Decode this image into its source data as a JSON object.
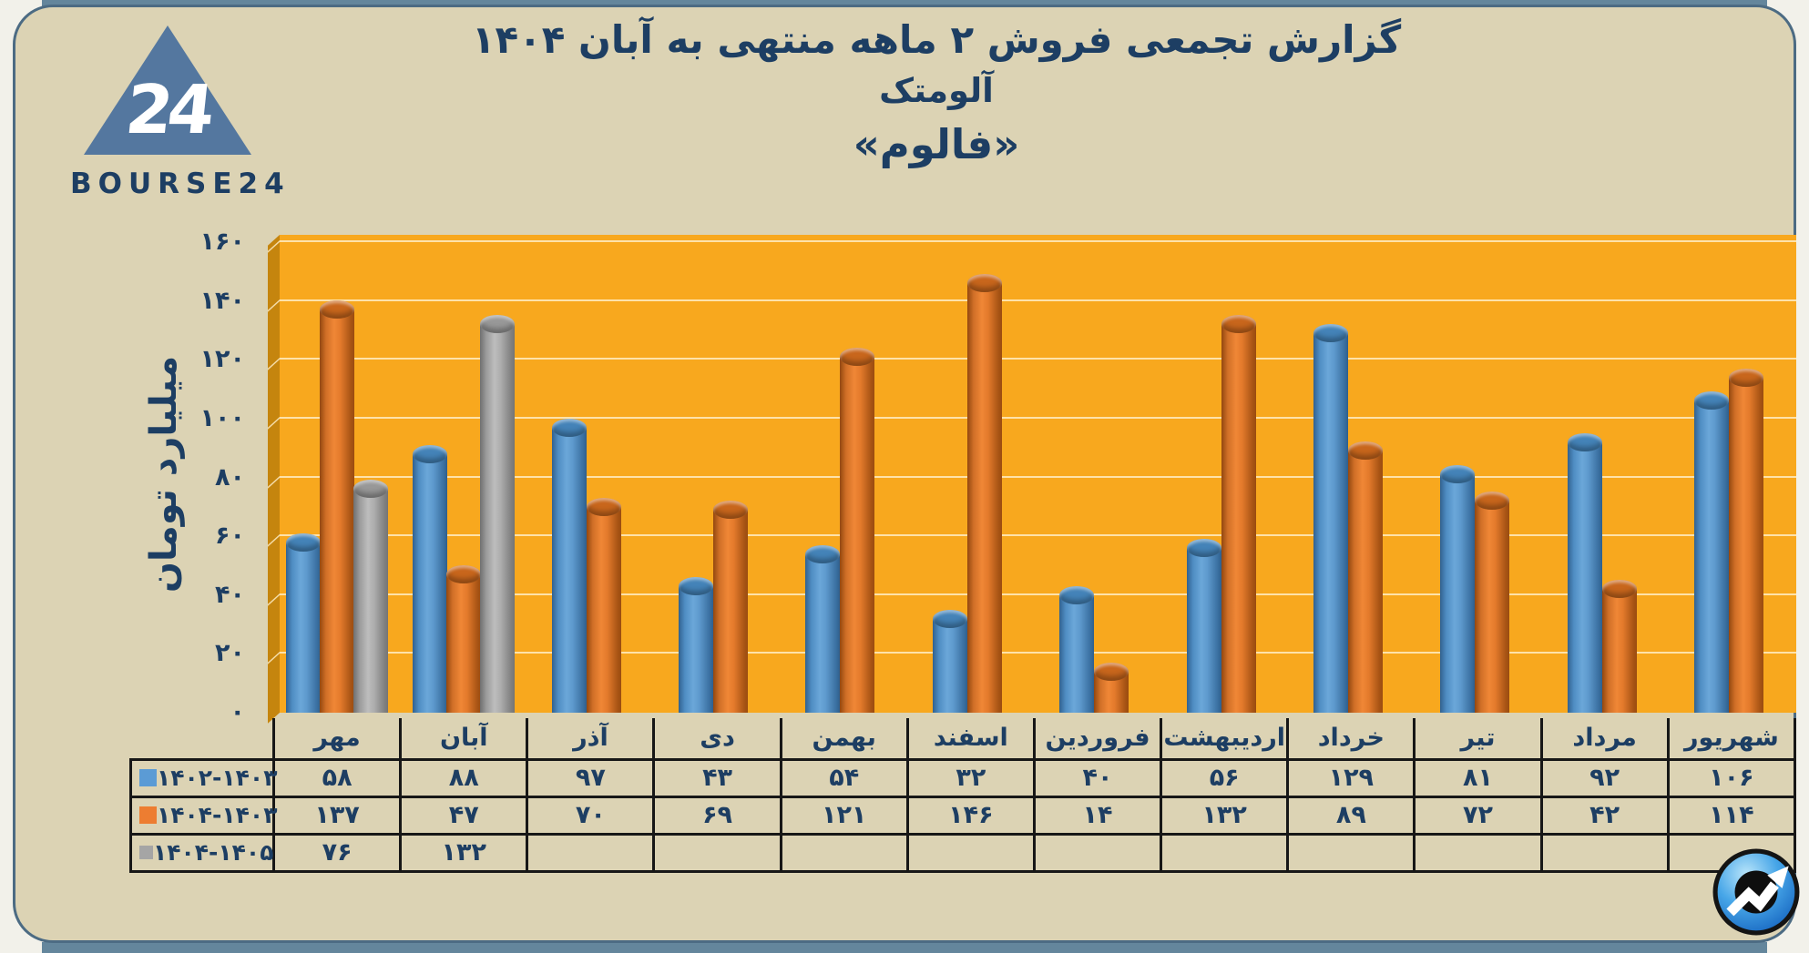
{
  "frame": {
    "strip_color": "#64869c",
    "card_bg": "#dcd3b4",
    "card_border": "#4c6b83"
  },
  "logo": {
    "icon": "bourse24-triangle-logo",
    "number": "24",
    "wordmark": "BOURSE24",
    "triangle_color": "#54779f"
  },
  "title": {
    "line1": "گزارش تجمعی فروش ۲ ماهه منتهی به آبان ۱۴۰۴",
    "line2": "آلومتک",
    "line3": "«فالوم»",
    "text_color": "#1d3e63"
  },
  "y_axis": {
    "title": "میلیارد تومان",
    "tick_min": 0,
    "tick_max": 160,
    "tick_step": 20
  },
  "digits_fa": "۰۱۲۳۴۵۶۷۸۹",
  "chart_data": {
    "type": "bar",
    "subtype": "3d-cylinder",
    "categories": [
      "مهر",
      "آبان",
      "آذر",
      "دی",
      "بهمن",
      "اسفند",
      "فروردین",
      "اردیبهشت",
      "خرداد",
      "تیر",
      "مرداد",
      "شهریور"
    ],
    "series": [
      {
        "name": "۱۴۰۲-۱۴۰۳",
        "color": "#5b9bd5",
        "values": [
          58,
          88,
          97,
          43,
          54,
          32,
          40,
          56,
          129,
          81,
          92,
          106
        ]
      },
      {
        "name": "۱۴۰۴-۱۴۰۳",
        "color": "#ed7d31",
        "values": [
          137,
          47,
          70,
          69,
          121,
          146,
          14,
          132,
          89,
          72,
          42,
          114
        ]
      },
      {
        "name": "۱۴۰۴-۱۴۰۵",
        "color": "#a5a5a5",
        "values": [
          76,
          132,
          null,
          null,
          null,
          null,
          null,
          null,
          null,
          null,
          null,
          null
        ]
      }
    ],
    "ylabel": "میلیارد تومان",
    "ylim": [
      0,
      160
    ],
    "grid": true,
    "plot_bg": "#f8a81e",
    "wall_color": "#c5850e",
    "legend_position": "table-left"
  },
  "badge": {
    "icon": "trend-up-arrow-badge",
    "sphere_color": "#2f8ad6",
    "ring_color": "#141414",
    "arrow_color": "#ffffff"
  }
}
